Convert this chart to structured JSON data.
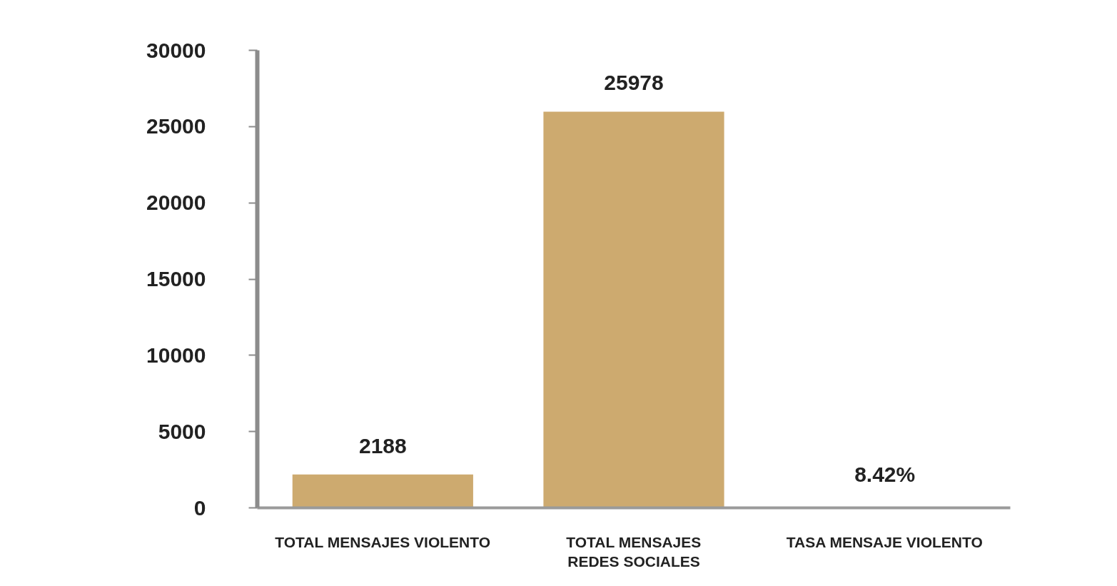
{
  "chart_data": {
    "type": "bar",
    "categories": [
      "TOTAL MENSAJES VIOLENTO",
      "TOTAL MENSAJES REDES SOCIALES",
      "TASA MENSAJE VIOLENTO"
    ],
    "values": [
      2188,
      25978,
      8.42
    ],
    "value_labels": [
      "2188",
      "25978",
      "8.42%"
    ],
    "color": "#cdaa6f",
    "ylim": [
      0,
      30000
    ],
    "yticks": [
      0,
      5000,
      10000,
      15000,
      20000,
      25000,
      30000
    ]
  }
}
